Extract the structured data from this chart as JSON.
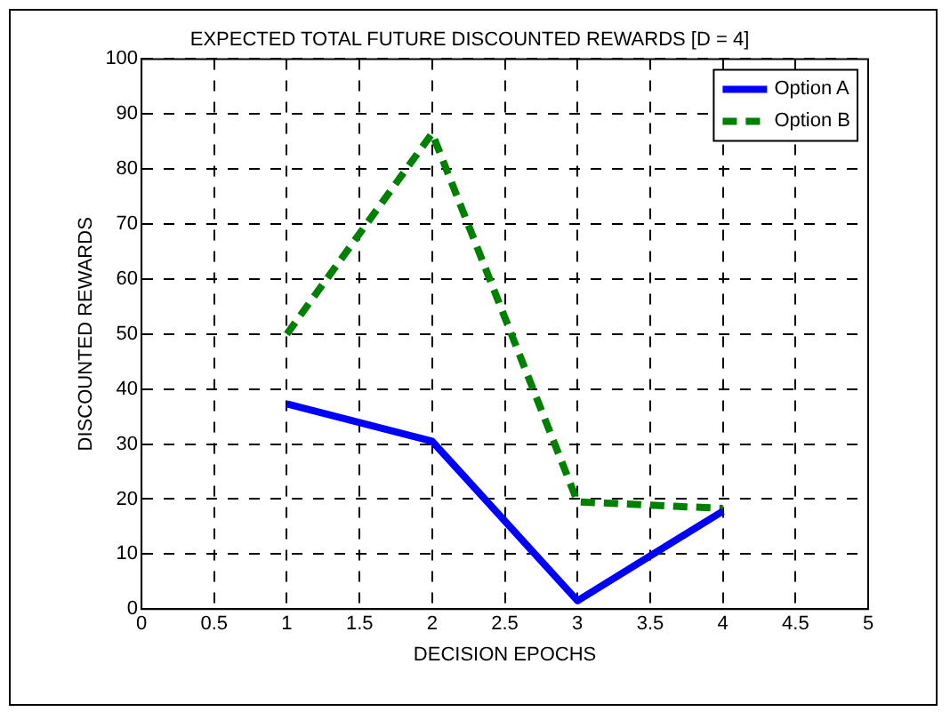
{
  "chart_data": {
    "type": "line",
    "title": "EXPECTED TOTAL FUTURE DISCOUNTED REWARDS [D = 4]",
    "xlabel": "DECISION EPOCHS",
    "ylabel": "DISCOUNTED REWARDS",
    "x": [
      1,
      2,
      3,
      4
    ],
    "series": [
      {
        "name": "Option A",
        "color": "#0000ff",
        "values": [
          37.3,
          30.5,
          1.5,
          17.8
        ],
        "line_style": "solid"
      },
      {
        "name": "Option B",
        "color": "#008000",
        "values": [
          50,
          86.5,
          19.5,
          18.3
        ],
        "line_style": "dashed"
      }
    ],
    "xlim": [
      0,
      5
    ],
    "xticks": [
      0,
      0.5,
      1,
      1.5,
      2,
      2.5,
      3,
      3.5,
      4,
      4.5,
      5
    ],
    "ylim": [
      0,
      100
    ],
    "yticks": [
      0,
      10,
      20,
      30,
      40,
      50,
      60,
      70,
      80,
      90,
      100
    ],
    "grid": true,
    "legend": "top right",
    "marker": "none"
  }
}
